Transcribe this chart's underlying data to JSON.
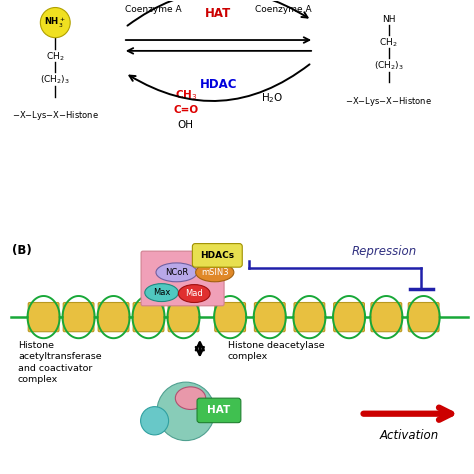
{
  "bg_color": "#ffffff",
  "panel_A": {
    "nh3_circle_color": "#f0e020",
    "hat_color": "#cc0000",
    "hdac_color": "#0000dd",
    "acetyl_color": "#dd0000",
    "h2o": "H₂O"
  },
  "panel_B": {
    "label": "(B)",
    "hdacs_color": "#e8e050",
    "hdacs_label": "HDACs",
    "pink_rect_color": "#f0a0b8",
    "ncor_color": "#b8a8e8",
    "ncor_label": "NCoR",
    "msin3_color": "#e08828",
    "msin3_label": "mSIN3",
    "max_color": "#50c8c0",
    "max_label": "Max",
    "mad_color": "#e03030",
    "mad_label": "Mad",
    "repression_label": "Repression",
    "repression_color": "#303080",
    "activation_label": "Activation",
    "activation_color": "#cc0000",
    "histone_color": "#e8c040",
    "histone_outline": "#b89820",
    "dna_color": "#18a838",
    "text1": "Histone\nacetyltransferase\nand coactivator\ncomplex",
    "text2": "Histone deacetylase\ncomplex",
    "hat_rect_color": "#40c050",
    "hat_bottom_label": "HAT",
    "hat_bottom_label_color": "#ffffff"
  }
}
